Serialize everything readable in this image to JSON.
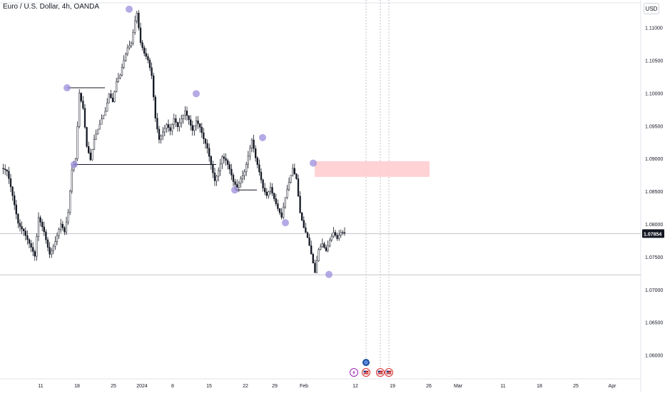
{
  "header": {
    "symbol_title": "Euro / U.S. Dollar, 4h, OANDA",
    "currency": "USD"
  },
  "chart_data": {
    "type": "candlestick",
    "price_axis": {
      "ticks": [
        "1.11000",
        "1.10500",
        "1.10000",
        "1.09500",
        "1.09000",
        "1.08500",
        "1.08000",
        "1.07500",
        "1.07000",
        "1.06500",
        "1.06000"
      ],
      "tick_values": [
        1.11,
        1.105,
        1.1,
        1.095,
        1.09,
        1.085,
        1.08,
        1.075,
        1.07,
        1.065,
        1.06
      ],
      "current_price_label": "1.07854",
      "current_price": 1.07854
    },
    "time_axis": {
      "labels": [
        "11",
        "18",
        "25",
        "2024",
        "8",
        "15",
        "22",
        "29",
        "Feb",
        "12",
        "19",
        "26",
        "Mar",
        "11",
        "18",
        "25",
        "Apr"
      ]
    },
    "price_path": [
      [
        0,
        1.0885
      ],
      [
        3,
        1.0875
      ],
      [
        6,
        1.084
      ],
      [
        9,
        1.0805
      ],
      [
        12,
        1.0795
      ],
      [
        15,
        1.077
      ],
      [
        18,
        1.0745
      ],
      [
        20,
        1.0805
      ],
      [
        23,
        1.079
      ],
      [
        26,
        1.076
      ],
      [
        29,
        1.0775
      ],
      [
        32,
        1.0795
      ],
      [
        34,
        1.0782
      ],
      [
        36,
        1.0815
      ],
      [
        38,
        1.0885
      ],
      [
        40,
        1.0905
      ],
      [
        42,
        1.1005
      ],
      [
        44,
        1.0978
      ],
      [
        46,
        1.0915
      ],
      [
        48,
        1.0892
      ],
      [
        50,
        1.0925
      ],
      [
        52,
        1.0945
      ],
      [
        54,
        1.0965
      ],
      [
        56,
        1.0978
      ],
      [
        58,
        1.1002
      ],
      [
        60,
        1.0985
      ],
      [
        62,
        1.1012
      ],
      [
        64,
        1.1022
      ],
      [
        66,
        1.1048
      ],
      [
        68,
        1.1072
      ],
      [
        70,
        1.1082
      ],
      [
        72,
        1.1115
      ],
      [
        73,
        1.1125
      ],
      [
        75,
        1.1075
      ],
      [
        77,
        1.1055
      ],
      [
        79,
        1.1045
      ],
      [
        81,
        1.1025
      ],
      [
        83,
        1.0965
      ],
      [
        85,
        1.0935
      ],
      [
        87,
        1.0945
      ],
      [
        89,
        1.0952
      ],
      [
        91,
        1.0938
      ],
      [
        93,
        1.0955
      ],
      [
        95,
        1.0945
      ],
      [
        97,
        1.0962
      ],
      [
        99,
        1.0978
      ],
      [
        101,
        1.0965
      ],
      [
        103,
        1.0945
      ],
      [
        105,
        1.0955
      ],
      [
        107,
        1.0942
      ],
      [
        109,
        1.0925
      ],
      [
        111,
        1.0915
      ],
      [
        113,
        1.0895
      ],
      [
        115,
        1.0872
      ],
      [
        117,
        1.0885
      ],
      [
        119,
        1.0902
      ],
      [
        121,
        1.0892
      ],
      [
        123,
        1.0878
      ],
      [
        125,
        1.0862
      ],
      [
        127,
        1.0858
      ],
      [
        129,
        1.0875
      ],
      [
        131,
        1.0885
      ],
      [
        133,
        1.0905
      ],
      [
        135,
        1.0925
      ],
      [
        137,
        1.0895
      ],
      [
        139,
        1.0875
      ],
      [
        141,
        1.0855
      ],
      [
        143,
        1.0848
      ],
      [
        145,
        1.0862
      ],
      [
        147,
        1.0842
      ],
      [
        149,
        1.0822
      ],
      [
        151,
        1.0805
      ],
      [
        153,
        1.0835
      ],
      [
        155,
        1.0862
      ],
      [
        157,
        1.0888
      ],
      [
        159,
        1.0875
      ],
      [
        161,
        1.0822
      ],
      [
        163,
        1.0795
      ],
      [
        165,
        1.0775
      ],
      [
        167,
        1.0748
      ],
      [
        169,
        1.0722
      ],
      [
        171,
        1.0762
      ],
      [
        173,
        1.0775
      ],
      [
        175,
        1.0765
      ],
      [
        177,
        1.0778
      ],
      [
        179,
        1.0785
      ],
      [
        181,
        1.0772
      ],
      [
        183,
        1.0782
      ],
      [
        185,
        1.0785
      ]
    ],
    "horizontal_lines": [
      {
        "price": 1.07854
      },
      {
        "price": 1.07225
      }
    ],
    "pivot_markers": [
      1.1008,
      1.0891,
      1.1128,
      1.0999,
      1.0852,
      1.0932,
      1.0802,
      1.0893,
      1.0723
    ],
    "structure_lines": [
      {
        "from_price": 1.1008,
        "to_price": 1.1008
      },
      {
        "from_price": 1.0891,
        "to_price": 1.0891
      },
      {
        "from_price": 1.0852,
        "to_price": 1.0852
      }
    ],
    "supply_zone": {
      "top": 1.0896,
      "bottom": 1.0872,
      "color": "#ffcdd2"
    },
    "events": [
      {
        "icon": "lightning-icon"
      },
      {
        "icon": "us-flag-icon"
      },
      {
        "icon": "globe-icon"
      },
      {
        "icon": "us-flag-icon"
      },
      {
        "icon": "us-flag-icon"
      }
    ],
    "colors": {
      "candles": "#131722",
      "markers": "#9c8ddc",
      "zone": "#ffcdd2",
      "price_label_bg": "#131722"
    }
  }
}
